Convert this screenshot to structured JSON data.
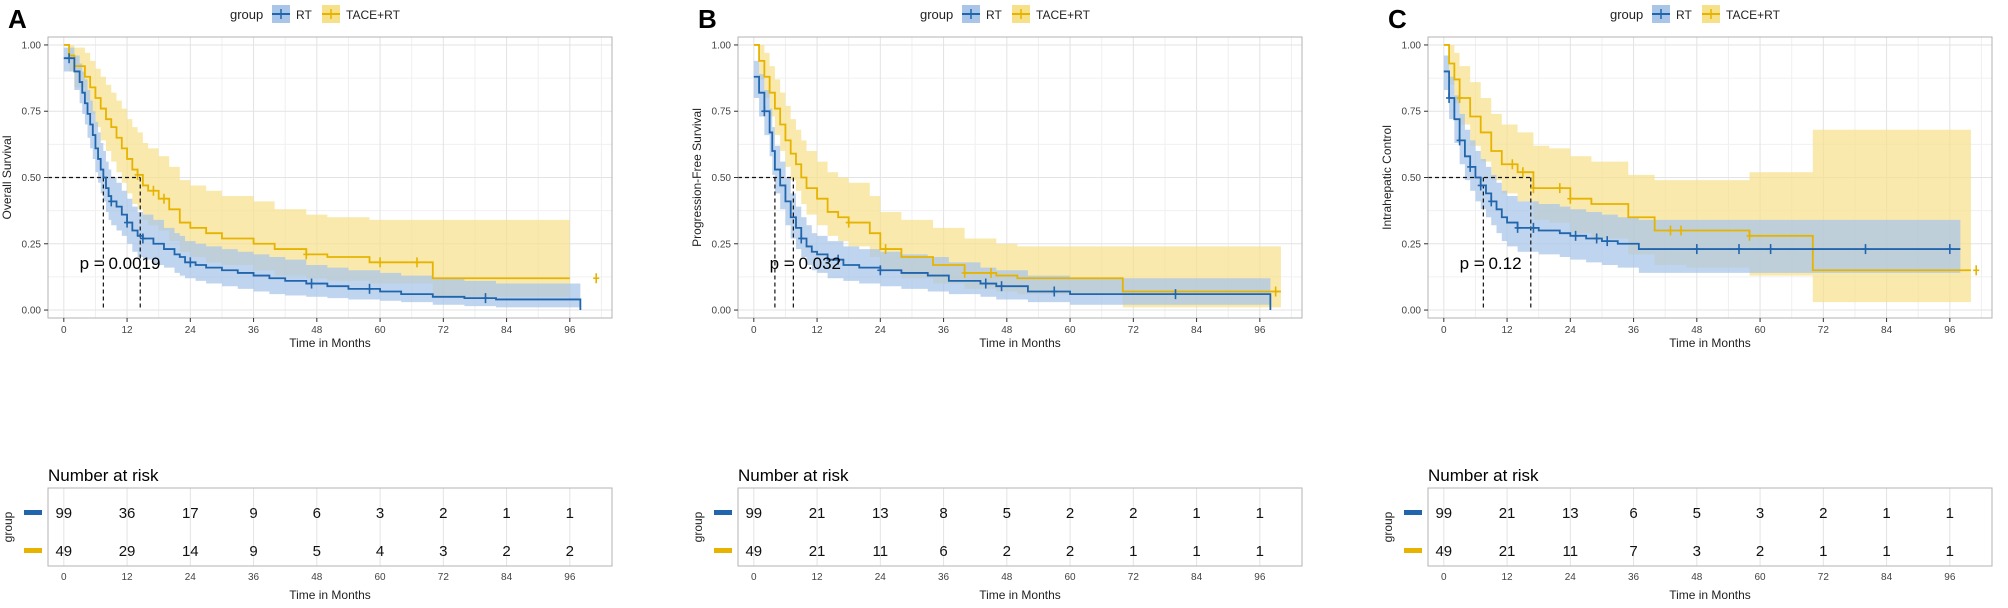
{
  "colors": {
    "rt": "#2166ac",
    "tace": "#e6b400",
    "rt_fill": "#a9c6e8",
    "tace_fill": "#f6e08a",
    "grid": "#e3e3e3",
    "panel_border": "#b3b3b3",
    "text": "#222222"
  },
  "legend": {
    "title": "group",
    "rt_label": "RT",
    "tace_label": "TACE+RT"
  },
  "risk_table": {
    "title": "Number at risk",
    "ylabel": "group"
  },
  "chart_data": [
    {
      "type": "line",
      "panel": "A",
      "ylabel": "Overall Survival",
      "xlabel": "Time in Months",
      "xlim": [
        -3,
        104
      ],
      "ylim": [
        -0.03,
        1.03
      ],
      "xticks": [
        "0",
        "12",
        "24",
        "36",
        "48",
        "60",
        "72",
        "84",
        "96"
      ],
      "yticks": [
        "0.00",
        "0.25",
        "0.50",
        "0.75",
        "1.00"
      ],
      "pvalue": "p = 0.0019",
      "median": {
        "rt": 7.5,
        "tace": 14.5
      },
      "series": [
        {
          "name": "RT",
          "x": [
            0,
            2,
            3,
            3.5,
            4,
            4.5,
            5,
            5.5,
            6,
            6.5,
            7,
            7.5,
            8,
            8.5,
            9,
            10,
            11,
            12,
            13,
            14,
            15,
            17,
            19,
            21,
            22,
            23,
            25,
            27,
            30,
            33,
            36,
            39,
            42,
            46,
            50,
            54,
            60,
            64,
            70,
            76,
            82,
            90,
            98
          ],
          "y": [
            0.95,
            0.9,
            0.86,
            0.82,
            0.78,
            0.74,
            0.7,
            0.66,
            0.61,
            0.57,
            0.53,
            0.5,
            0.46,
            0.43,
            0.41,
            0.39,
            0.36,
            0.33,
            0.3,
            0.28,
            0.27,
            0.25,
            0.23,
            0.21,
            0.2,
            0.18,
            0.17,
            0.16,
            0.15,
            0.14,
            0.13,
            0.12,
            0.11,
            0.1,
            0.09,
            0.08,
            0.07,
            0.06,
            0.05,
            0.045,
            0.04,
            0.04,
            0
          ],
          "lower": [
            0.9,
            0.83,
            0.78,
            0.74,
            0.7,
            0.65,
            0.61,
            0.57,
            0.52,
            0.48,
            0.44,
            0.41,
            0.37,
            0.34,
            0.32,
            0.3,
            0.28,
            0.25,
            0.22,
            0.2,
            0.19,
            0.17,
            0.16,
            0.14,
            0.13,
            0.12,
            0.11,
            0.1,
            0.09,
            0.08,
            0.07,
            0.06,
            0.055,
            0.05,
            0.045,
            0.04,
            0.035,
            0.03,
            0.02,
            0.015,
            0.01,
            0.01,
            0
          ],
          "upper": [
            0.99,
            0.96,
            0.93,
            0.9,
            0.87,
            0.83,
            0.79,
            0.75,
            0.71,
            0.67,
            0.63,
            0.6,
            0.56,
            0.53,
            0.5,
            0.48,
            0.45,
            0.42,
            0.39,
            0.37,
            0.36,
            0.34,
            0.31,
            0.29,
            0.28,
            0.26,
            0.25,
            0.24,
            0.23,
            0.22,
            0.21,
            0.2,
            0.19,
            0.17,
            0.16,
            0.15,
            0.14,
            0.13,
            0.12,
            0.11,
            0.1,
            0.1,
            0.1
          ],
          "censor_x": [
            1,
            9,
            12,
            15,
            24,
            47,
            58,
            80
          ],
          "risk": [
            "99",
            "36",
            "17",
            "9",
            "6",
            "3",
            "2",
            "1",
            "1"
          ]
        },
        {
          "name": "TACE+RT",
          "x": [
            0,
            1,
            2,
            4,
            5,
            6,
            7,
            8,
            9,
            10,
            11,
            12,
            13,
            14,
            15,
            16,
            18,
            20,
            22,
            24,
            27,
            30,
            36,
            40,
            46,
            50,
            58,
            70,
            96
          ],
          "y": [
            1,
            0.96,
            0.92,
            0.88,
            0.84,
            0.8,
            0.76,
            0.72,
            0.69,
            0.65,
            0.61,
            0.57,
            0.53,
            0.51,
            0.47,
            0.45,
            0.42,
            0.38,
            0.33,
            0.31,
            0.29,
            0.27,
            0.25,
            0.23,
            0.21,
            0.2,
            0.18,
            0.12,
            0.12
          ],
          "lower": [
            1,
            0.9,
            0.84,
            0.79,
            0.74,
            0.69,
            0.64,
            0.6,
            0.56,
            0.52,
            0.48,
            0.44,
            0.4,
            0.38,
            0.34,
            0.32,
            0.3,
            0.26,
            0.22,
            0.2,
            0.18,
            0.17,
            0.15,
            0.13,
            0.12,
            0.11,
            0.1,
            0.05,
            0.05
          ],
          "upper": [
            1,
            1,
            0.99,
            0.97,
            0.94,
            0.91,
            0.88,
            0.85,
            0.82,
            0.79,
            0.76,
            0.72,
            0.69,
            0.67,
            0.63,
            0.61,
            0.58,
            0.54,
            0.49,
            0.47,
            0.45,
            0.43,
            0.41,
            0.38,
            0.36,
            0.35,
            0.34,
            0.34,
            0.34
          ],
          "censor_x": [
            14,
            17,
            19,
            46,
            60,
            67,
            101
          ],
          "risk": [
            "49",
            "29",
            "14",
            "9",
            "5",
            "4",
            "3",
            "2",
            "2"
          ]
        }
      ]
    },
    {
      "type": "line",
      "panel": "B",
      "ylabel": "Progression-Free Survival",
      "xlabel": "Time in Months",
      "xlim": [
        -3,
        104
      ],
      "ylim": [
        -0.03,
        1.03
      ],
      "xticks": [
        "0",
        "12",
        "24",
        "36",
        "48",
        "60",
        "72",
        "84",
        "96"
      ],
      "yticks": [
        "0.00",
        "0.25",
        "0.50",
        "0.75",
        "1.00"
      ],
      "pvalue": "p = 0.032",
      "median": {
        "rt": 4,
        "tace": 7.5
      },
      "series": [
        {
          "name": "RT",
          "x": [
            0,
            1,
            2,
            3,
            3.5,
            4,
            5,
            6,
            7,
            8,
            9,
            10,
            11,
            12,
            14,
            17,
            20,
            24,
            28,
            33,
            37,
            43,
            46,
            52,
            60,
            70,
            80,
            98
          ],
          "y": [
            0.88,
            0.82,
            0.75,
            0.67,
            0.6,
            0.53,
            0.47,
            0.41,
            0.35,
            0.31,
            0.27,
            0.24,
            0.22,
            0.21,
            0.19,
            0.17,
            0.16,
            0.15,
            0.14,
            0.13,
            0.11,
            0.1,
            0.09,
            0.07,
            0.06,
            0.06,
            0.06,
            0
          ],
          "lower": [
            0.8,
            0.73,
            0.66,
            0.58,
            0.51,
            0.44,
            0.38,
            0.32,
            0.27,
            0.23,
            0.2,
            0.17,
            0.15,
            0.14,
            0.12,
            0.11,
            0.1,
            0.09,
            0.08,
            0.07,
            0.06,
            0.05,
            0.04,
            0.03,
            0.02,
            0.02,
            0.02,
            0
          ],
          "upper": [
            0.94,
            0.89,
            0.83,
            0.76,
            0.69,
            0.62,
            0.56,
            0.5,
            0.44,
            0.39,
            0.35,
            0.32,
            0.29,
            0.28,
            0.26,
            0.24,
            0.23,
            0.22,
            0.21,
            0.2,
            0.18,
            0.16,
            0.15,
            0.13,
            0.12,
            0.12,
            0.12,
            0.12
          ],
          "censor_x": [
            2,
            9,
            16,
            24,
            44,
            47,
            57,
            80
          ],
          "risk": [
            "99",
            "21",
            "13",
            "8",
            "5",
            "2",
            "2",
            "1",
            "1"
          ]
        },
        {
          "name": "TACE+RT",
          "x": [
            0,
            1,
            2,
            3,
            4,
            5,
            6,
            7,
            8,
            9,
            10,
            12,
            14,
            16,
            18,
            22,
            24,
            28,
            34,
            40,
            46,
            50,
            70,
            100
          ],
          "y": [
            1,
            0.94,
            0.88,
            0.82,
            0.76,
            0.7,
            0.64,
            0.59,
            0.55,
            0.5,
            0.46,
            0.42,
            0.37,
            0.35,
            0.33,
            0.29,
            0.23,
            0.2,
            0.17,
            0.14,
            0.13,
            0.12,
            0.07,
            0.07
          ],
          "lower": [
            1,
            0.87,
            0.8,
            0.73,
            0.66,
            0.6,
            0.54,
            0.49,
            0.45,
            0.4,
            0.36,
            0.32,
            0.28,
            0.26,
            0.24,
            0.2,
            0.15,
            0.12,
            0.1,
            0.08,
            0.07,
            0.06,
            0.01,
            0.01
          ],
          "upper": [
            1,
            1,
            0.97,
            0.92,
            0.87,
            0.82,
            0.77,
            0.72,
            0.68,
            0.64,
            0.6,
            0.56,
            0.52,
            0.5,
            0.48,
            0.43,
            0.37,
            0.34,
            0.31,
            0.27,
            0.25,
            0.24,
            0.24,
            0.36
          ],
          "censor_x": [
            18,
            25,
            40,
            45,
            99
          ],
          "risk": [
            "49",
            "21",
            "11",
            "6",
            "2",
            "2",
            "1",
            "1",
            "1"
          ]
        }
      ]
    },
    {
      "type": "line",
      "panel": "C",
      "ylabel": "Intrahepatic Control",
      "xlabel": "Time in Months",
      "xlim": [
        -3,
        104
      ],
      "ylim": [
        -0.03,
        1.03
      ],
      "xticks": [
        "0",
        "12",
        "24",
        "36",
        "48",
        "60",
        "72",
        "84",
        "96"
      ],
      "yticks": [
        "0.00",
        "0.25",
        "0.50",
        "0.75",
        "1.00"
      ],
      "pvalue": "p = 0.12",
      "median": {
        "rt": 7.5,
        "tace": 16.5
      },
      "series": [
        {
          "name": "RT",
          "x": [
            0,
            1,
            2,
            3,
            4,
            5,
            6,
            7,
            8,
            9,
            10,
            11,
            12,
            14,
            16,
            18,
            20,
            22,
            24,
            27,
            30,
            33,
            37,
            40,
            98
          ],
          "y": [
            0.9,
            0.8,
            0.72,
            0.64,
            0.58,
            0.54,
            0.5,
            0.47,
            0.44,
            0.41,
            0.38,
            0.35,
            0.33,
            0.31,
            0.31,
            0.3,
            0.3,
            0.29,
            0.28,
            0.27,
            0.26,
            0.25,
            0.23,
            0.23,
            0.23
          ],
          "lower": [
            0.83,
            0.72,
            0.63,
            0.55,
            0.49,
            0.45,
            0.41,
            0.38,
            0.35,
            0.32,
            0.29,
            0.26,
            0.24,
            0.22,
            0.22,
            0.21,
            0.21,
            0.2,
            0.19,
            0.18,
            0.17,
            0.16,
            0.14,
            0.14,
            0.14
          ],
          "upper": [
            0.96,
            0.88,
            0.81,
            0.74,
            0.68,
            0.64,
            0.6,
            0.57,
            0.54,
            0.51,
            0.48,
            0.45,
            0.43,
            0.41,
            0.41,
            0.4,
            0.4,
            0.39,
            0.38,
            0.37,
            0.36,
            0.35,
            0.34,
            0.34,
            0.38
          ],
          "censor_x": [
            1,
            3,
            5,
            7,
            9,
            14,
            17,
            25,
            29,
            31,
            48,
            56,
            62,
            80,
            96
          ],
          "risk": [
            "99",
            "21",
            "13",
            "6",
            "5",
            "3",
            "2",
            "1",
            "1"
          ]
        },
        {
          "name": "TACE+RT",
          "x": [
            0,
            1,
            2,
            3,
            5,
            7,
            9,
            11,
            14,
            17,
            20,
            24,
            28,
            35,
            40,
            46,
            58,
            70,
            100
          ],
          "y": [
            1,
            0.93,
            0.87,
            0.8,
            0.73,
            0.67,
            0.6,
            0.55,
            0.52,
            0.46,
            0.46,
            0.42,
            0.4,
            0.35,
            0.3,
            0.3,
            0.28,
            0.15,
            0.15
          ],
          "lower": [
            1,
            0.85,
            0.78,
            0.7,
            0.62,
            0.56,
            0.49,
            0.44,
            0.41,
            0.34,
            0.33,
            0.29,
            0.27,
            0.21,
            0.17,
            0.16,
            0.13,
            0.03,
            0.03
          ],
          "upper": [
            1,
            1,
            0.97,
            0.92,
            0.86,
            0.8,
            0.74,
            0.7,
            0.67,
            0.62,
            0.61,
            0.58,
            0.56,
            0.51,
            0.49,
            0.49,
            0.52,
            0.68,
            0.68
          ],
          "censor_x": [
            3,
            13,
            15,
            17,
            22,
            24,
            43,
            45,
            58,
            101
          ],
          "risk": [
            "49",
            "21",
            "11",
            "7",
            "3",
            "2",
            "1",
            "1",
            "1"
          ]
        }
      ]
    }
  ]
}
